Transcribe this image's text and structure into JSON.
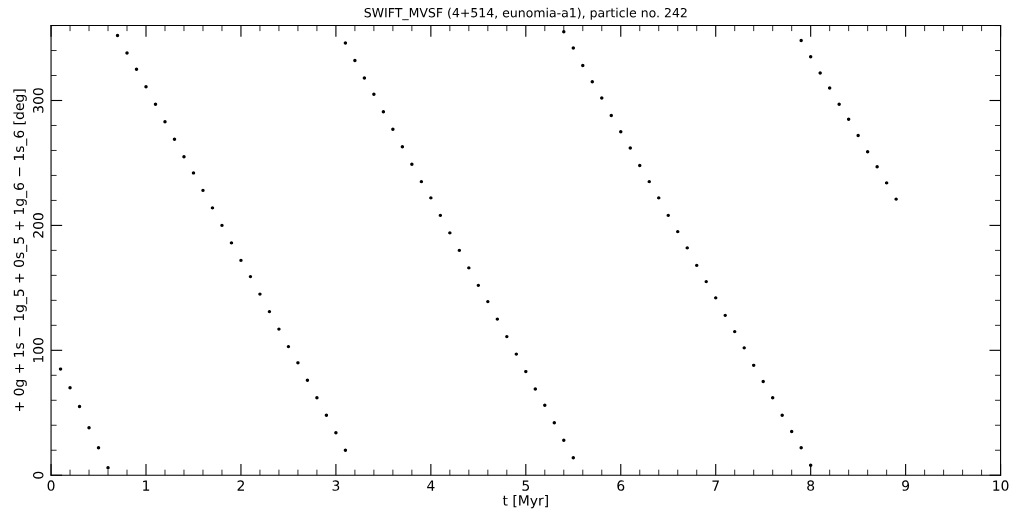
{
  "chart_data": {
    "type": "scatter",
    "title": "SWIFT_MVSF (4+514, eunomia-a1), particle no. 242",
    "xlabel": "t [Myr]",
    "ylabel": "+ 0g + 1s − 1g_5 + 0s_5 + 1g_6 − 1s_6 [deg]",
    "x": [
      0.1,
      0.2,
      0.3,
      0.4,
      0.5,
      0.6,
      0.7,
      0.8,
      0.9,
      1.0,
      1.1,
      1.2,
      1.3,
      1.4,
      1.5,
      1.6,
      1.7,
      1.8,
      1.9,
      2.0,
      2.1,
      2.2,
      2.3,
      2.4,
      2.5,
      2.6,
      2.7,
      2.8,
      2.9,
      3.0,
      3.1,
      3.1,
      3.2,
      3.3,
      3.4,
      3.5,
      3.6,
      3.7,
      3.8,
      3.9,
      4.0,
      4.1,
      4.2,
      4.3,
      4.4,
      4.5,
      4.6,
      4.7,
      4.8,
      4.9,
      5.0,
      5.1,
      5.2,
      5.3,
      5.4,
      5.5,
      5.4,
      5.5,
      5.6,
      5.7,
      5.8,
      5.9,
      6.0,
      6.1,
      6.2,
      6.3,
      6.4,
      6.5,
      6.6,
      6.7,
      6.8,
      6.9,
      7.0,
      7.1,
      7.2,
      7.3,
      7.4,
      7.5,
      7.6,
      7.7,
      7.8,
      7.9,
      8.0,
      7.9,
      8.0,
      8.1,
      8.2,
      8.3,
      8.4,
      8.5,
      8.6,
      8.7,
      8.8,
      8.9
    ],
    "series": [
      {
        "color": "#000000",
        "values": [
          85,
          70,
          55,
          38,
          22,
          6,
          352,
          338,
          325,
          311,
          297,
          283,
          269,
          255,
          242,
          228,
          214,
          200,
          186,
          172,
          159,
          145,
          131,
          117,
          103,
          90,
          76,
          62,
          48,
          34,
          20,
          346,
          332,
          318,
          305,
          291,
          277,
          263,
          249,
          235,
          222,
          208,
          194,
          180,
          166,
          152,
          139,
          125,
          111,
          97,
          83,
          69,
          56,
          42,
          28,
          14,
          355,
          342,
          328,
          315,
          302,
          288,
          275,
          262,
          248,
          235,
          222,
          208,
          195,
          182,
          168,
          155,
          142,
          128,
          115,
          102,
          88,
          75,
          62,
          48,
          35,
          22,
          8,
          348,
          335,
          322,
          310,
          297,
          285,
          272,
          259,
          247,
          234,
          221
        ]
      }
    ],
    "xlim": [
      0,
      10
    ],
    "ylim": [
      0,
      360
    ],
    "xticks": [
      0,
      1,
      2,
      3,
      4,
      5,
      6,
      7,
      8,
      9,
      10
    ],
    "yticks": [
      0,
      100,
      200,
      300
    ],
    "grid": false,
    "marker": "circle"
  }
}
